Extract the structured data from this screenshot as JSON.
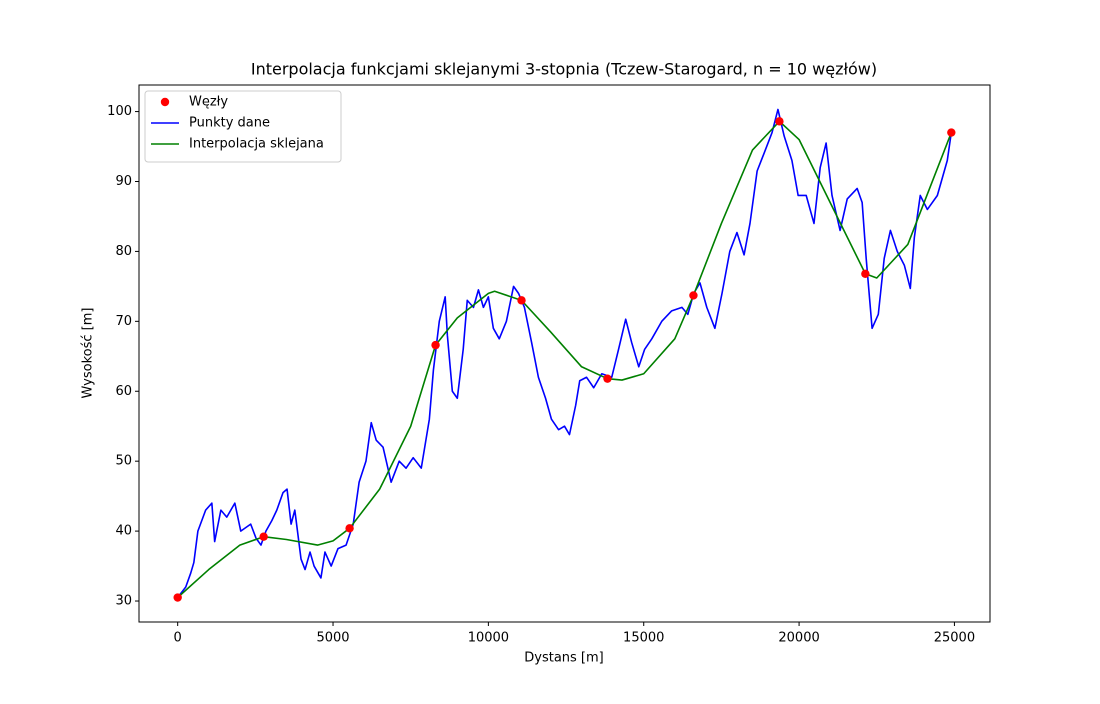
{
  "chart_data": {
    "type": "line",
    "title": "Interpolacja funkcjami sklejanymi 3-stopnia (Tczew-Starogard, n = 10 węzłów)",
    "xlabel": "Dystans [m]",
    "ylabel": "Wysokość [m]",
    "xlim": [
      -1245,
      26145
    ],
    "ylim": [
      27.0,
      103.8
    ],
    "xticks": [
      0,
      5000,
      10000,
      15000,
      20000,
      25000
    ],
    "yticks": [
      30,
      40,
      50,
      60,
      70,
      80,
      90,
      100
    ],
    "legend": "upper left",
    "grid": false,
    "series": [
      {
        "name": "Węzły",
        "type": "scatter",
        "color": "#ff0000",
        "x": [
          0,
          2767,
          5533,
          8300,
          11067,
          13833,
          16600,
          19367,
          22133,
          24900
        ],
        "values": [
          30.5,
          39.2,
          40.4,
          66.6,
          73.0,
          61.8,
          73.7,
          98.6,
          76.8,
          97.0
        ]
      },
      {
        "name": "Punkty dane",
        "type": "line",
        "color": "#0000ff",
        "x": [
          0,
          260,
          420,
          520,
          650,
          900,
          1100,
          1190,
          1390,
          1580,
          1840,
          2030,
          2350,
          2520,
          2680,
          2840,
          3030,
          3190,
          3390,
          3520,
          3650,
          3770,
          3970,
          4100,
          4260,
          4390,
          4610,
          4740,
          4940,
          5160,
          5420,
          5650,
          5840,
          6060,
          6230,
          6390,
          6610,
          6870,
          7130,
          7350,
          7580,
          7840,
          8100,
          8230,
          8420,
          8610,
          8680,
          8840,
          9000,
          9190,
          9320,
          9520,
          9680,
          9840,
          10000,
          10160,
          10350,
          10580,
          10810,
          10970,
          11160,
          11390,
          11610,
          11840,
          12030,
          12260,
          12450,
          12610,
          12810,
          12940,
          13160,
          13390,
          13650,
          13970,
          14190,
          14420,
          14610,
          14840,
          15030,
          15260,
          15580,
          15900,
          16230,
          16420,
          16610,
          16810,
          17030,
          17290,
          17520,
          17770,
          18000,
          18230,
          18420,
          18650,
          18870,
          19130,
          19320,
          19520,
          19770,
          19970,
          20230,
          20480,
          20680,
          20870,
          21060,
          21320,
          21550,
          21870,
          22030,
          22160,
          22350,
          22550,
          22740,
          22940,
          23160,
          23390,
          23580,
          23710,
          23900,
          24130,
          24450,
          24770,
          24900
        ],
        "values": [
          30.5,
          32,
          34,
          35.5,
          40,
          43,
          44,
          38.5,
          43,
          42,
          44,
          40,
          41,
          39,
          38,
          40,
          41.5,
          43,
          45.5,
          46,
          41,
          43,
          36,
          34.5,
          37,
          35,
          33.3,
          37,
          35,
          37.5,
          38,
          41,
          47,
          50,
          55.5,
          53,
          52,
          47,
          50,
          49,
          50.5,
          49,
          56,
          63,
          70,
          73.5,
          68,
          60,
          59,
          66,
          73,
          72,
          74.5,
          72,
          73.5,
          69,
          67.5,
          70,
          75,
          74,
          72,
          67,
          62,
          59,
          56,
          54.5,
          55,
          53.8,
          58,
          61.5,
          62,
          60.5,
          62.5,
          62,
          66,
          70.3,
          67,
          63.5,
          66,
          67.5,
          70,
          71.5,
          72,
          71,
          74,
          75.5,
          72,
          69,
          74,
          80,
          82.7,
          79.5,
          84,
          91.5,
          94,
          97,
          100.3,
          96.5,
          93,
          88,
          88,
          84,
          92,
          95.5,
          88,
          83,
          87.5,
          89,
          87,
          79,
          69,
          71,
          79,
          83,
          80,
          78,
          74.7,
          82,
          88,
          86,
          88,
          93,
          97
        ]
      },
      {
        "name": "Interpolacja sklejana",
        "type": "line",
        "color": "#008000",
        "x": [
          0,
          1000,
          2000,
          2767,
          3500,
          4500,
          5000,
          5533,
          6500,
          7500,
          8300,
          9000,
          10000,
          10200,
          11067,
          12000,
          13000,
          13833,
          14300,
          15000,
          16000,
          16600,
          17500,
          18500,
          19367,
          20000,
          21000,
          22133,
          22500,
          23500,
          24900
        ],
        "values": [
          30.5,
          34.5,
          38,
          39.2,
          38.8,
          38.0,
          38.6,
          40.4,
          46,
          55,
          66.6,
          70.5,
          74.0,
          74.3,
          73.0,
          68.5,
          63.5,
          61.8,
          61.6,
          62.5,
          67.5,
          73.7,
          84,
          94.5,
          98.6,
          96,
          87,
          76.8,
          76.2,
          81,
          97.0
        ]
      }
    ]
  }
}
